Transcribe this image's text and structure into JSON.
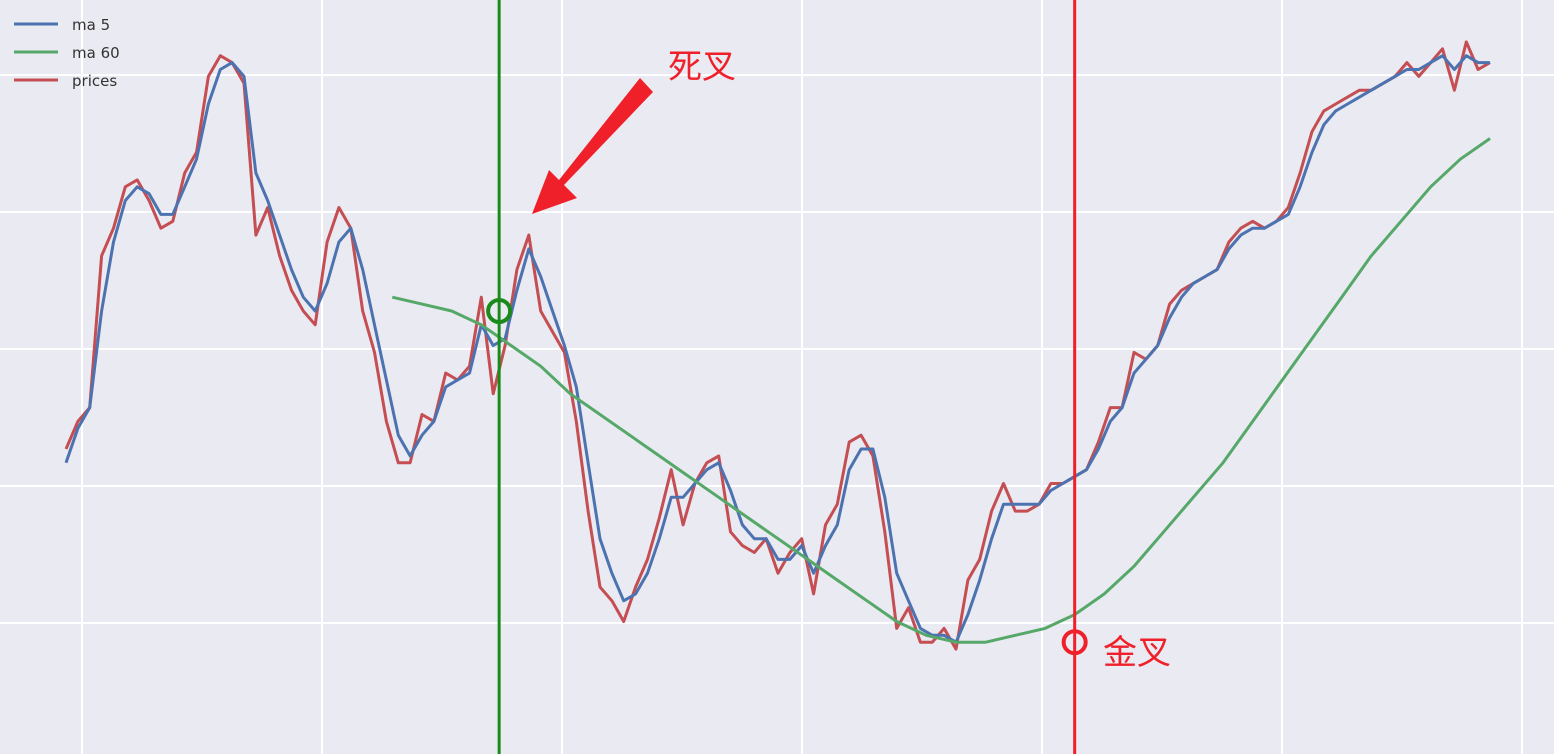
{
  "colors": {
    "background": "#eaeaf2",
    "grid": "#ffffff",
    "ma5": "#4c72b0",
    "ma60": "#55a868",
    "prices": "#c44e52",
    "death_cross": "#1a8a1a",
    "golden_cross": "#f0202a"
  },
  "chart_data": {
    "type": "line",
    "title": "",
    "xlabel": "",
    "ylabel": "",
    "grid": true,
    "xlim": [
      0,
      240
    ],
    "ylim": [
      0,
      100
    ],
    "legend": {
      "placement": "top-left",
      "entries": [
        "ma 5",
        "ma 60",
        "prices"
      ]
    },
    "series": [
      {
        "name": "prices",
        "x": [
          0,
          2,
          4,
          6,
          8,
          10,
          12,
          14,
          16,
          18,
          20,
          22,
          24,
          26,
          28,
          30,
          32,
          34,
          36,
          38,
          40,
          42,
          44,
          46,
          48,
          50,
          52,
          54,
          56,
          58,
          60,
          62,
          64,
          66,
          68,
          70,
          72,
          74,
          76,
          78,
          80,
          82,
          84,
          86,
          88,
          90,
          92,
          94,
          96,
          98,
          100,
          102,
          104,
          106,
          108,
          110,
          112,
          114,
          116,
          118,
          120,
          122,
          124,
          126,
          128,
          130,
          132,
          134,
          136,
          138,
          140,
          142,
          144,
          146,
          148,
          150,
          152,
          154,
          156,
          158,
          160,
          162,
          164,
          166,
          168,
          170,
          172,
          174,
          176,
          178,
          180,
          182,
          184,
          186,
          188,
          190,
          192,
          194,
          196,
          198,
          200,
          202,
          204,
          206,
          208,
          210,
          212,
          214,
          216,
          218,
          220,
          222,
          224,
          226,
          228,
          230,
          232,
          234,
          236,
          238,
          240
        ],
        "values": [
          40,
          44,
          46,
          68,
          72,
          78,
          79,
          76,
          72,
          73,
          80,
          83,
          94,
          97,
          96,
          93,
          71,
          75,
          68,
          63,
          60,
          58,
          70,
          75,
          72,
          60,
          54,
          44,
          38,
          38,
          45,
          44,
          51,
          50,
          52,
          62,
          48,
          55,
          66,
          71,
          60,
          57,
          54,
          44,
          31,
          20,
          18,
          15,
          20,
          24,
          30,
          37,
          29,
          35,
          38,
          39,
          28,
          26,
          25,
          27,
          22,
          25,
          27,
          19,
          29,
          32,
          41,
          42,
          39,
          28,
          14,
          17,
          12,
          12,
          14,
          11,
          21,
          24,
          31,
          35,
          31,
          31,
          32,
          35,
          35,
          36,
          37,
          41,
          46,
          46,
          54,
          53,
          55,
          61,
          63,
          64,
          65,
          66,
          70,
          72,
          73,
          72,
          73,
          75,
          80,
          86,
          89,
          90,
          91,
          92,
          92,
          93,
          94,
          96,
          94,
          96,
          98,
          92,
          99,
          95,
          96
        ]
      },
      {
        "name": "ma 5",
        "x": [
          0,
          2,
          4,
          6,
          8,
          10,
          12,
          14,
          16,
          18,
          20,
          22,
          24,
          26,
          28,
          30,
          32,
          34,
          36,
          38,
          40,
          42,
          44,
          46,
          48,
          50,
          52,
          54,
          56,
          58,
          60,
          62,
          64,
          66,
          68,
          70,
          72,
          74,
          76,
          78,
          80,
          82,
          84,
          86,
          88,
          90,
          92,
          94,
          96,
          98,
          100,
          102,
          104,
          106,
          108,
          110,
          112,
          114,
          116,
          118,
          120,
          122,
          124,
          126,
          128,
          130,
          132,
          134,
          136,
          138,
          140,
          142,
          144,
          146,
          148,
          150,
          152,
          154,
          156,
          158,
          160,
          162,
          164,
          166,
          168,
          170,
          172,
          174,
          176,
          178,
          180,
          182,
          184,
          186,
          188,
          190,
          192,
          194,
          196,
          198,
          200,
          202,
          204,
          206,
          208,
          210,
          212,
          214,
          216,
          218,
          220,
          222,
          224,
          226,
          228,
          230,
          232,
          234,
          236,
          238,
          240
        ],
        "values": [
          38,
          43,
          46,
          60,
          70,
          76,
          78,
          77,
          74,
          74,
          78,
          82,
          90,
          95,
          96,
          94,
          80,
          76,
          71,
          66,
          62,
          60,
          64,
          70,
          72,
          66,
          58,
          50,
          42,
          39,
          42,
          44,
          49,
          50,
          51,
          58,
          55,
          56,
          63,
          69,
          65,
          60,
          55,
          49,
          38,
          27,
          22,
          18,
          19,
          22,
          27,
          33,
          33,
          35,
          37,
          38,
          34,
          29,
          27,
          27,
          24,
          24,
          26,
          22,
          26,
          29,
          37,
          40,
          40,
          33,
          22,
          18,
          14,
          13,
          13,
          12,
          16,
          21,
          27,
          32,
          32,
          32,
          32,
          34,
          35,
          36,
          37,
          40,
          44,
          46,
          51,
          53,
          55,
          59,
          62,
          64,
          65,
          66,
          69,
          71,
          72,
          72,
          73,
          74,
          78,
          83,
          87,
          89,
          90,
          91,
          92,
          93,
          94,
          95,
          95,
          96,
          97,
          95,
          97,
          96,
          96
        ]
      },
      {
        "name": "ma 60",
        "x": [
          55,
          60,
          65,
          70,
          75,
          80,
          85,
          90,
          95,
          100,
          105,
          110,
          115,
          120,
          125,
          130,
          135,
          140,
          145,
          150,
          155,
          160,
          165,
          170,
          175,
          180,
          185,
          190,
          195,
          200,
          205,
          210,
          215,
          220,
          225,
          230,
          235,
          240
        ],
        "values": [
          62,
          61,
          60,
          58,
          55,
          52,
          48,
          45,
          42,
          39,
          36,
          33,
          30,
          27,
          24,
          21,
          18,
          15,
          13,
          12,
          12,
          13,
          14,
          16,
          19,
          23,
          28,
          33,
          38,
          44,
          50,
          56,
          62,
          68,
          73,
          78,
          82,
          85
        ]
      }
    ],
    "annotations": [
      {
        "label": "死叉",
        "x": 73,
        "y": 60,
        "marker": "death-cross"
      },
      {
        "label": "金叉",
        "x": 170,
        "y": 12,
        "marker": "golden-cross"
      }
    ]
  }
}
